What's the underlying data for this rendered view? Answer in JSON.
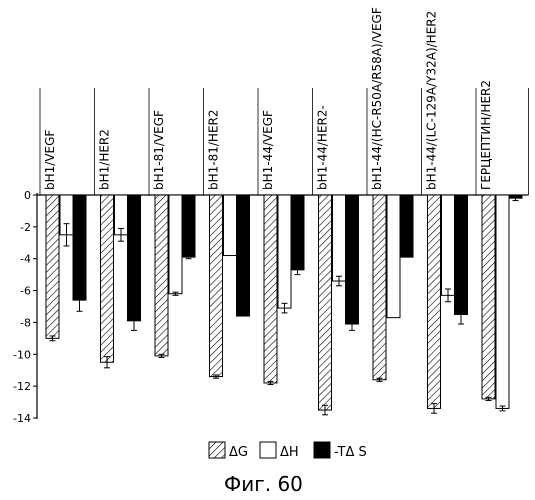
{
  "chart_data": {
    "type": "bar",
    "categories": [
      "bH1/VEGF",
      "bH1/HER2",
      "bH1-81/VEGF",
      "bH1-81/HER2",
      "bH1-44/VEGF",
      "bH1-44/HER2-",
      "bH1-44/(HC-R50A/R58A)/VEGF",
      "bH1-44/(LC-129A/Y32A)/HER2",
      "ГЕРЦЕПТИН/HER2"
    ],
    "series": [
      {
        "name": "ΔG",
        "pattern": "hatched",
        "values": [
          -9.0,
          -10.5,
          -10.1,
          -11.4,
          -11.8,
          -13.5,
          -11.6,
          -13.4,
          -12.8
        ],
        "errors": [
          0.15,
          0.35,
          0.1,
          0.1,
          0.1,
          0.3,
          0.1,
          0.3,
          0.1
        ]
      },
      {
        "name": "ΔH",
        "pattern": "open",
        "values": [
          -2.5,
          -2.5,
          -6.2,
          -3.8,
          -7.1,
          -5.4,
          -7.7,
          -6.3,
          -13.4
        ],
        "errors": [
          0.7,
          0.4,
          0.1,
          0.0,
          0.3,
          0.3,
          0.0,
          0.4,
          0.15
        ]
      },
      {
        "name": "-TΔS",
        "pattern": "solid",
        "values": [
          -6.6,
          -7.9,
          -3.9,
          -7.6,
          -4.7,
          -8.1,
          -3.9,
          -7.5,
          -0.2
        ],
        "errors": [
          0.7,
          0.6,
          0.1,
          0.0,
          0.3,
          0.4,
          0.0,
          0.6,
          0.15
        ]
      }
    ],
    "ylim": [
      -14,
      0
    ],
    "yticks": [
      0,
      -2,
      -4,
      -6,
      -8,
      -10,
      -12,
      -14
    ],
    "legend_position": "bottom-center",
    "grid": false,
    "colors": {
      "hatched": "#ffffff",
      "open": "#ffffff",
      "solid": "#000000",
      "stroke": "#000000"
    }
  },
  "legend": [
    {
      "symbol": "hatched",
      "label": "ΔG"
    },
    {
      "symbol": "open",
      "label": "ΔH"
    },
    {
      "symbol": "solid",
      "label": "-TΔ S"
    }
  ],
  "figure_caption": "Фиг. 60"
}
